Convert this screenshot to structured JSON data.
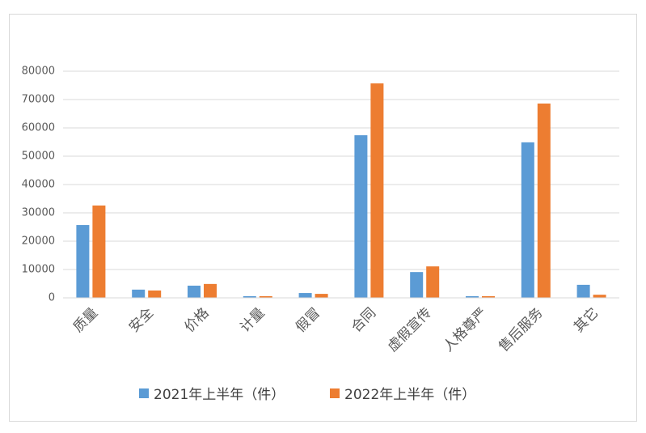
{
  "chart_data": {
    "type": "bar",
    "categories": [
      "质量",
      "安全",
      "价格",
      "计量",
      "假冒",
      "合同",
      "虚假宣传",
      "人格尊严",
      "售后服务",
      "其它"
    ],
    "series": [
      {
        "name": "2021年上半年（件）",
        "color": "#5b9bd5",
        "values": [
          25700,
          2900,
          4300,
          600,
          1700,
          57400,
          9100,
          600,
          54900,
          4600
        ]
      },
      {
        "name": "2022年上半年（件）",
        "color": "#ed7d31",
        "values": [
          32600,
          2600,
          4900,
          600,
          1400,
          75700,
          11100,
          600,
          68600,
          1100
        ]
      }
    ],
    "ylim": [
      0,
      80000
    ],
    "yticks": [
      0,
      10000,
      20000,
      30000,
      40000,
      50000,
      60000,
      70000,
      80000
    ],
    "grid": true,
    "legend": "bottom"
  }
}
